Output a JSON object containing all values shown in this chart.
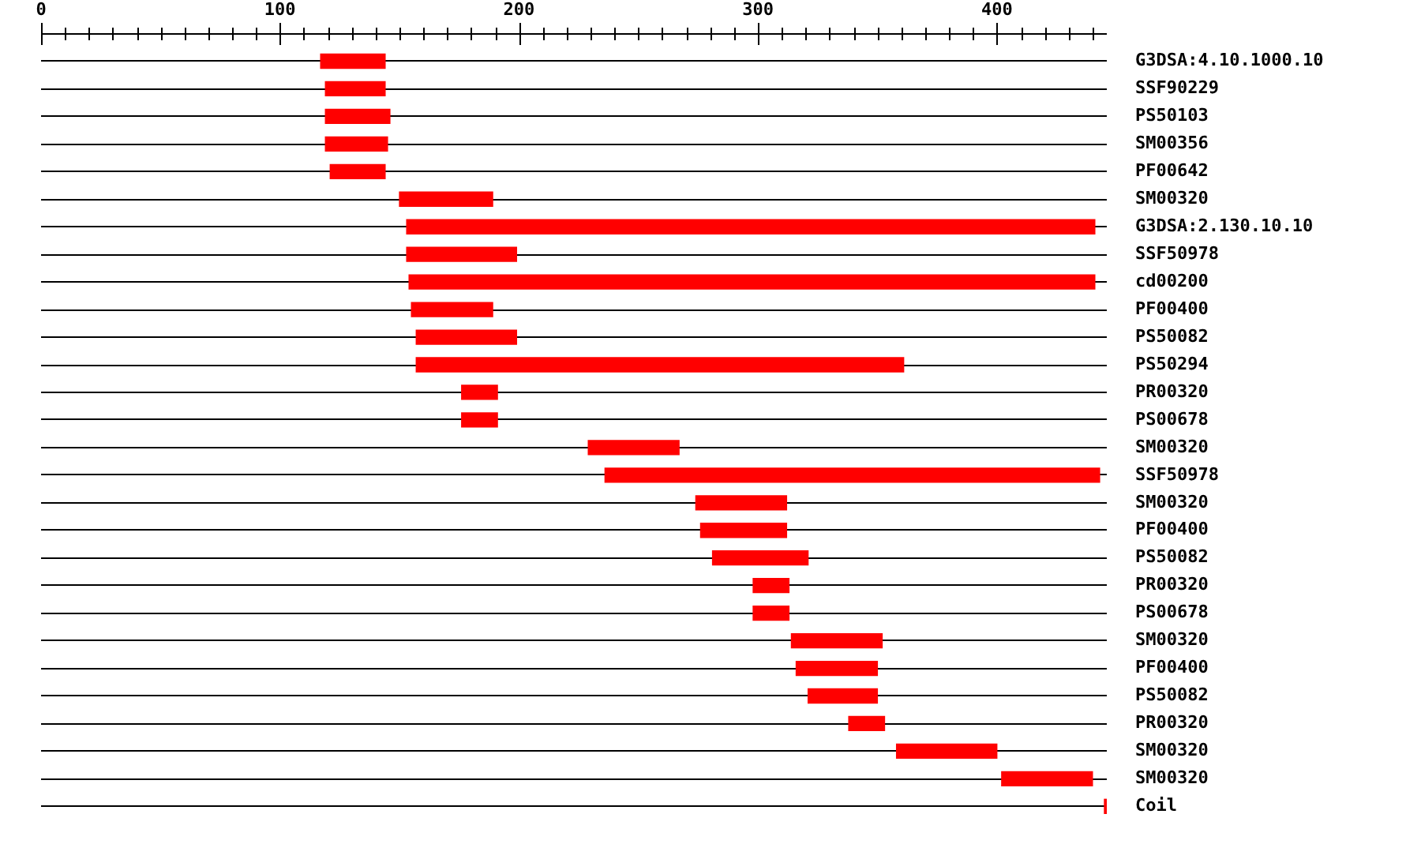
{
  "chart_data": {
    "type": "bar",
    "orientation": "horizontal",
    "categories": [
      "G3DSA:4.10.1000.10",
      "SSF90229",
      "PS50103",
      "SM00356",
      "PF00642",
      "SM00320",
      "G3DSA:2.130.10.10",
      "SSF50978",
      "cd00200",
      "PF00400",
      "PS50082",
      "PS50294",
      "PR00320",
      "PS00678",
      "SM00320",
      "SSF50978",
      "SM00320",
      "PF00400",
      "PS50082",
      "PR00320",
      "PS00678",
      "SM00320",
      "PF00400",
      "PS50082",
      "PR00320",
      "SM00320",
      "SM00320",
      "Coil"
    ],
    "base": [
      117,
      119,
      119,
      119,
      121,
      150,
      153,
      153,
      154,
      155,
      157,
      157,
      176,
      176,
      229,
      236,
      274,
      276,
      281,
      298,
      298,
      314,
      316,
      321,
      338,
      358,
      402,
      445
    ],
    "values": [
      27,
      25,
      27,
      26,
      23,
      39,
      288,
      46,
      287,
      34,
      42,
      204,
      15,
      15,
      38,
      207,
      38,
      36,
      40,
      15,
      15,
      38,
      34,
      29,
      15,
      42,
      38,
      1
    ],
    "color": "#ff0000",
    "xlim": [
      0,
      446
    ],
    "xticks": [
      0,
      {
        "value": 10,
        "label": null
      },
      {
        "value": 20,
        "label": null
      },
      {
        "value": 30,
        "label": null
      },
      {
        "value": 40,
        "label": null
      },
      {
        "value": 50,
        "label": null
      },
      {
        "value": 60,
        "label": null
      },
      {
        "value": 70,
        "label": null
      },
      {
        "value": 80,
        "label": null
      },
      {
        "value": 90,
        "label": null
      },
      100,
      {
        "value": 110,
        "label": null
      },
      {
        "value": 120,
        "label": null
      },
      {
        "value": 130,
        "label": null
      },
      {
        "value": 140,
        "label": null
      },
      {
        "value": 150,
        "label": null
      },
      {
        "value": 160,
        "label": null
      },
      {
        "value": 170,
        "label": null
      },
      {
        "value": 180,
        "label": null
      },
      {
        "value": 190,
        "label": null
      },
      200,
      {
        "value": 210,
        "label": null
      },
      {
        "value": 220,
        "label": null
      },
      {
        "value": 230,
        "label": null
      },
      {
        "value": 240,
        "label": null
      },
      {
        "value": 250,
        "label": null
      },
      {
        "value": 260,
        "label": null
      },
      {
        "value": 270,
        "label": null
      },
      {
        "value": 280,
        "label": null
      },
      {
        "value": 290,
        "label": null
      },
      300,
      {
        "value": 310,
        "label": null
      },
      {
        "value": 320,
        "label": null
      },
      {
        "value": 330,
        "label": null
      },
      {
        "value": 340,
        "label": null
      },
      {
        "value": 350,
        "label": null
      },
      {
        "value": 360,
        "label": null
      },
      {
        "value": 370,
        "label": null
      },
      {
        "value": 380,
        "label": null
      },
      {
        "value": 390,
        "label": null
      },
      400,
      {
        "value": 410,
        "label": null
      },
      {
        "value": 420,
        "label": null
      },
      {
        "value": 430,
        "label": null
      },
      {
        "value": 440,
        "label": null
      }
    ],
    "grid": "y",
    "legend": false
  }
}
